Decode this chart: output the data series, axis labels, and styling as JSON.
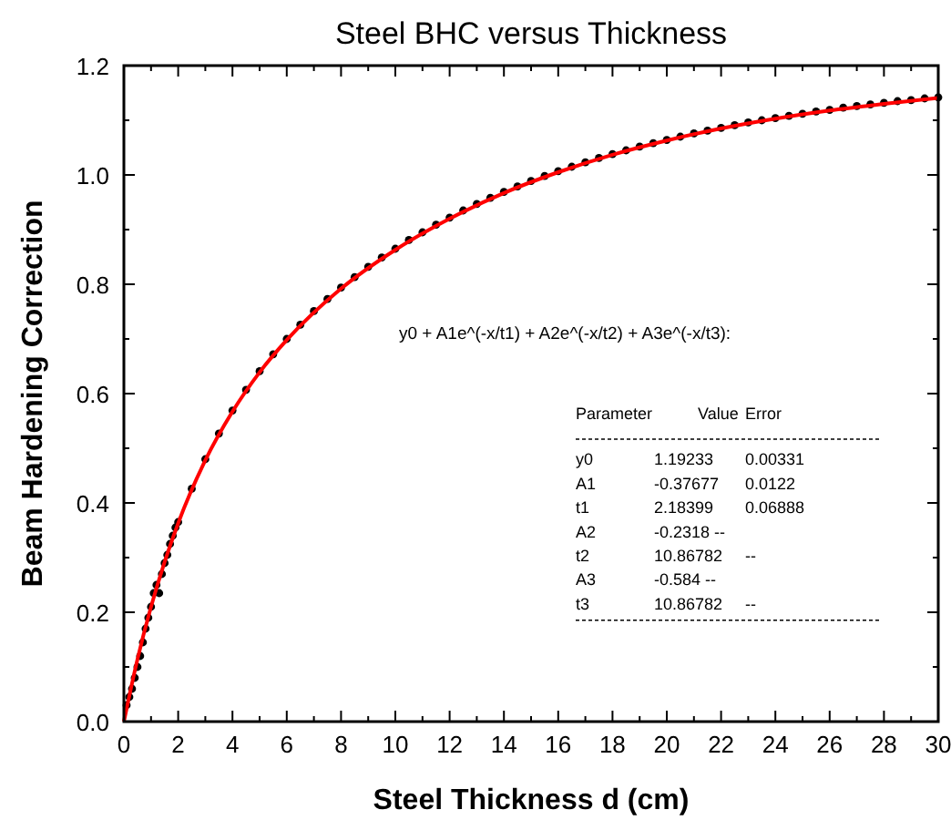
{
  "chart_data": {
    "type": "scatter",
    "title": "Steel BHC versus Thickness",
    "xlabel": "Steel Thickness d (cm)",
    "ylabel": "Beam Hardening Correction",
    "xlim": [
      0,
      30
    ],
    "xticks": [
      0,
      2,
      4,
      6,
      8,
      10,
      12,
      14,
      16,
      18,
      20,
      22,
      24,
      26,
      28,
      30
    ],
    "ylim": [
      0,
      1.2
    ],
    "yticks": [
      {
        "value": 0,
        "label": "0.0"
      },
      {
        "value": 0.2,
        "label": "0.2"
      },
      {
        "value": 0.4,
        "label": "0.4"
      },
      {
        "value": 0.6,
        "label": "0.6"
      },
      {
        "value": 0.8,
        "label": "0.8"
      },
      {
        "value": 1,
        "label": "1.0"
      },
      {
        "value": 1.2,
        "label": "1.2"
      }
    ],
    "grid": false,
    "marker": "circle",
    "series": [
      {
        "color": "#000000",
        "x": [
          0.1,
          0.2,
          0.3,
          0.4,
          0.5,
          0.6,
          0.7,
          0.8,
          0.9,
          1.0,
          1.1,
          1.2,
          1.3,
          1.4,
          1.5,
          1.6,
          1.7,
          1.8,
          1.9,
          2.0,
          2.5,
          3,
          3.5,
          4,
          4.5,
          5,
          5.5,
          6,
          6.5,
          7,
          7.5,
          8,
          8.5,
          9,
          9.5,
          10,
          10.5,
          11,
          11.5,
          12,
          12.5,
          13,
          13.5,
          14,
          14.5,
          15,
          15.5,
          16,
          16.5,
          17,
          17.5,
          18,
          18.5,
          19,
          19.5,
          20,
          20.5,
          21,
          21.5,
          22,
          22.5,
          23,
          23.5,
          24,
          24.5,
          25,
          25.5,
          26,
          26.5,
          27,
          27.5,
          28,
          28.5,
          29,
          29.5,
          30
        ],
        "values": [
          0.03,
          0.045,
          0.06,
          0.08,
          0.1,
          0.12,
          0.145,
          0.17,
          0.19,
          0.21,
          0.235,
          0.25,
          0.235,
          0.27,
          0.29,
          0.305,
          0.325,
          0.34,
          0.355,
          0.365,
          0.426,
          0.48,
          0.527,
          0.569,
          0.607,
          0.641,
          0.672,
          0.7,
          0.726,
          0.751,
          0.773,
          0.794,
          0.813,
          0.832,
          0.849,
          0.865,
          0.881,
          0.895,
          0.909,
          0.922,
          0.935,
          0.947,
          0.958,
          0.969,
          0.979,
          0.989,
          0.998,
          1.007,
          1.015,
          1.023,
          1.031,
          1.038,
          1.045,
          1.052,
          1.058,
          1.064,
          1.07,
          1.076,
          1.081,
          1.086,
          1.091,
          1.096,
          1.1,
          1.104,
          1.108,
          1.112,
          1.116,
          1.119,
          1.123,
          1.126,
          1.129,
          1.132,
          1.135,
          1.137,
          1.14,
          1.142
        ]
      },
      {
        "type": "line",
        "color": "#ff0000",
        "marker": "none",
        "x": [
          0,
          0.5,
          1,
          1.5,
          2,
          3,
          4,
          5,
          6,
          8,
          10,
          12,
          14,
          16,
          18,
          20,
          22,
          24,
          26,
          28,
          30
        ],
        "values": [
          0.0,
          0.114,
          0.21,
          0.292,
          0.363,
          0.478,
          0.567,
          0.639,
          0.698,
          0.792,
          0.863,
          0.92,
          0.967,
          1.005,
          1.037,
          1.063,
          1.085,
          1.103,
          1.118,
          1.13,
          1.141
        ]
      }
    ],
    "annotations": [
      "y0 + A1e^(-x/t1) + A2e^(-x/t2) + A3e^(-x/t3):",
      "Parameter",
      "Value",
      "Error",
      "y0",
      "1.19233",
      "0.00331",
      "A1",
      "-0.37677",
      "0.0122",
      "t1",
      "2.18399",
      "0.06888",
      "A2",
      "-0.2318 --",
      null,
      "t2",
      "10.86782",
      "--",
      "A3",
      "-0.584  --",
      null,
      "t3",
      "10.86782",
      "--"
    ]
  }
}
